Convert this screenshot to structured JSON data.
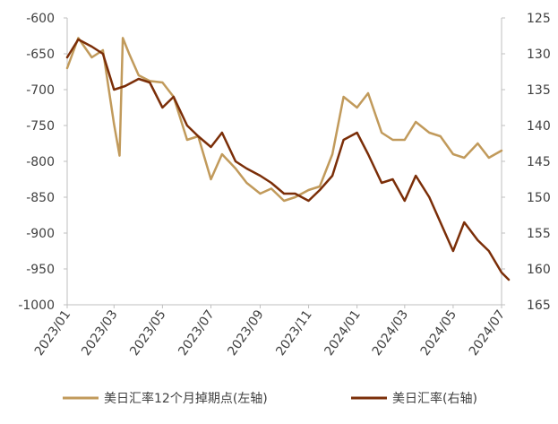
{
  "chart_data": {
    "type": "line",
    "x_ticks": [
      "2023/01",
      "2023/03",
      "2023/05",
      "2023/07",
      "2023/09",
      "2023/11",
      "2024/01",
      "2024/03",
      "2024/05",
      "2024/07"
    ],
    "left_axis": {
      "ylim": [
        -1000,
        -600
      ],
      "ticks": [
        "-600",
        "-650",
        "-700",
        "-750",
        "-800",
        "-850",
        "-900",
        "-950",
        "-1000"
      ]
    },
    "right_axis": {
      "ylim": [
        165,
        125
      ],
      "inverted": true,
      "ticks": [
        "125",
        "130",
        "135",
        "140",
        "145",
        "150",
        "155",
        "160",
        "165"
      ]
    },
    "grid": false,
    "legend_position": "bottom",
    "series": [
      {
        "name": "美日汇率12个月掉期点(左轴)",
        "axis": "left",
        "color": "#C19A5B",
        "x": [
          "2023/01/01",
          "2023/01/15",
          "2023/02/01",
          "2023/02/15",
          "2023/03/01",
          "2023/03/08",
          "2023/03/12",
          "2023/03/20",
          "2023/04/01",
          "2023/04/15",
          "2023/05/01",
          "2023/05/15",
          "2023/06/01",
          "2023/06/15",
          "2023/07/01",
          "2023/07/15",
          "2023/08/01",
          "2023/08/15",
          "2023/09/01",
          "2023/09/15",
          "2023/10/01",
          "2023/10/15",
          "2023/11/01",
          "2023/11/15",
          "2023/12/01",
          "2023/12/15",
          "2024/01/01",
          "2024/01/15",
          "2024/02/01",
          "2024/02/15",
          "2024/03/01",
          "2024/03/15",
          "2024/04/01",
          "2024/04/15",
          "2024/05/01",
          "2024/05/15",
          "2024/06/01",
          "2024/06/15",
          "2024/07/01"
        ],
        "values": [
          -670,
          -628,
          -655,
          -645,
          -748,
          -792,
          -628,
          -650,
          -680,
          -688,
          -690,
          -710,
          -770,
          -765,
          -825,
          -790,
          -810,
          -830,
          -845,
          -838,
          -855,
          -850,
          -840,
          -835,
          -790,
          -710,
          -725,
          -705,
          -760,
          -770,
          -770,
          -745,
          -760,
          -765,
          -790,
          -795,
          -775,
          -795,
          -785
        ]
      },
      {
        "name": "美日汇率(右轴)",
        "axis": "right",
        "color": "#7B2E08",
        "x": [
          "2023/01/01",
          "2023/01/15",
          "2023/02/01",
          "2023/02/15",
          "2023/03/01",
          "2023/03/15",
          "2023/04/01",
          "2023/04/15",
          "2023/05/01",
          "2023/05/15",
          "2023/06/01",
          "2023/06/15",
          "2023/07/01",
          "2023/07/15",
          "2023/08/01",
          "2023/08/15",
          "2023/09/01",
          "2023/09/15",
          "2023/10/01",
          "2023/10/15",
          "2023/11/01",
          "2023/11/15",
          "2023/12/01",
          "2023/12/15",
          "2024/01/01",
          "2024/01/15",
          "2024/02/01",
          "2024/02/15",
          "2024/03/01",
          "2024/03/15",
          "2024/04/01",
          "2024/04/15",
          "2024/05/01",
          "2024/05/15",
          "2024/06/01",
          "2024/06/15",
          "2024/07/01",
          "2024/07/10"
        ],
        "values": [
          130.5,
          128.0,
          129.0,
          130.0,
          135.0,
          134.5,
          133.5,
          134.0,
          137.5,
          136.0,
          140.0,
          141.5,
          143.0,
          141.0,
          145.0,
          146.0,
          147.0,
          148.0,
          149.5,
          149.5,
          150.5,
          149.0,
          147.0,
          142.0,
          141.0,
          144.0,
          148.0,
          147.5,
          150.5,
          147.0,
          150.0,
          153.5,
          157.5,
          153.5,
          156.0,
          157.5,
          160.5,
          161.5
        ]
      }
    ]
  }
}
